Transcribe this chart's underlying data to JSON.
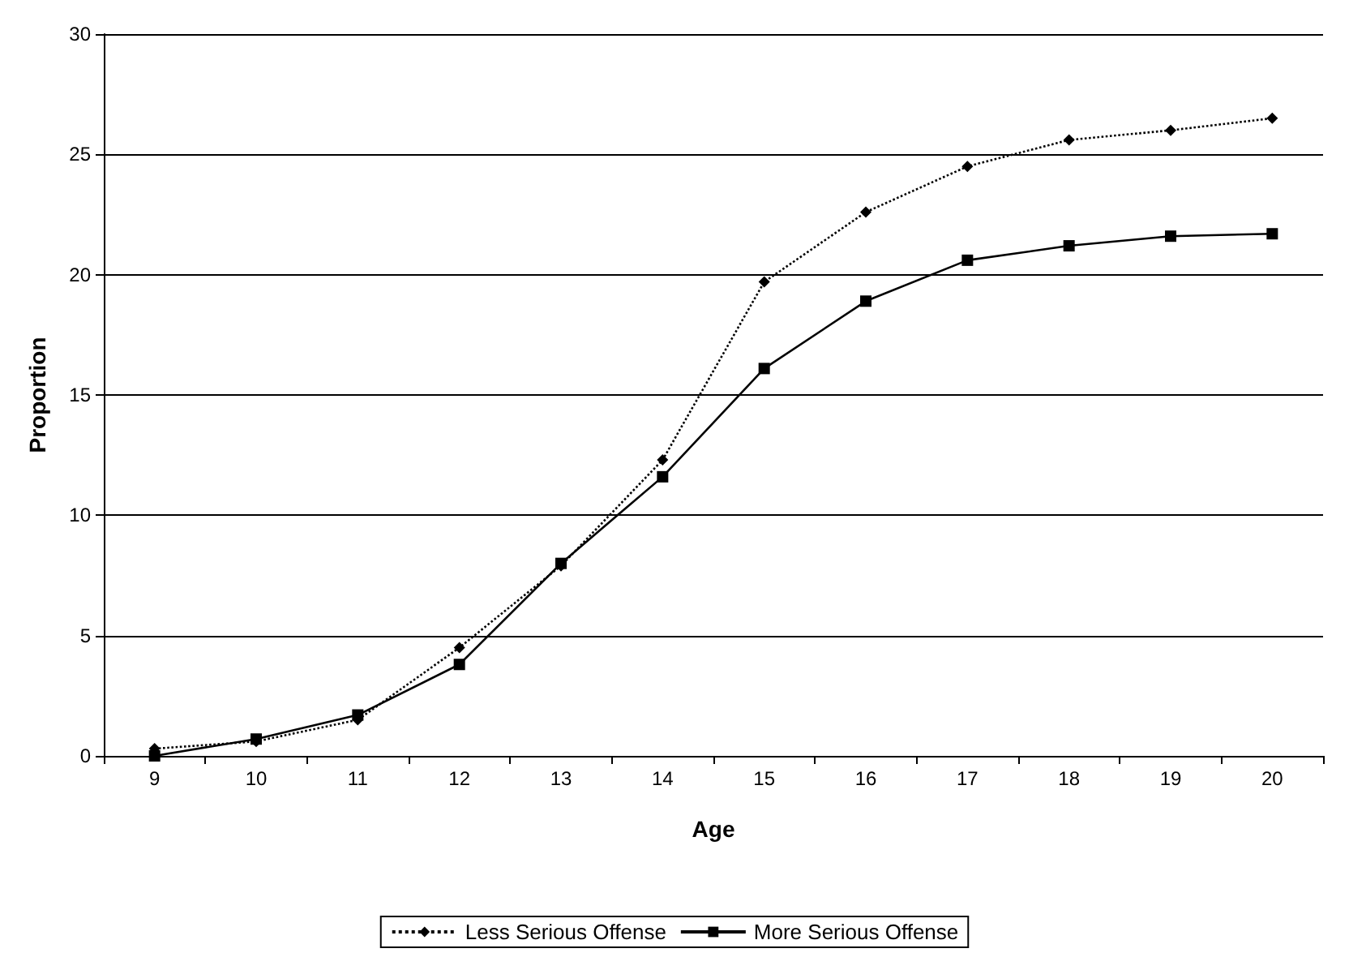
{
  "chart_data": {
    "type": "line",
    "xlabel": "Age",
    "ylabel": "Proportion",
    "categories": [
      "9",
      "10",
      "11",
      "12",
      "13",
      "14",
      "15",
      "16",
      "17",
      "18",
      "19",
      "20"
    ],
    "series": [
      {
        "name": "Less Serious Offense",
        "color": "#000000",
        "marker": "diamond",
        "line_style": "dotted",
        "values": [
          0.3,
          0.6,
          1.5,
          4.5,
          7.9,
          12.3,
          19.7,
          22.6,
          24.5,
          25.6,
          26.0,
          26.5
        ]
      },
      {
        "name": "More Serious Offense",
        "color": "#000000",
        "marker": "square",
        "line_style": "solid",
        "values": [
          0.0,
          0.7,
          1.7,
          3.8,
          8.0,
          11.6,
          16.1,
          18.9,
          20.6,
          21.2,
          21.6,
          21.7
        ]
      }
    ],
    "ylim": [
      0,
      30
    ],
    "yticks": [
      0,
      5,
      10,
      15,
      20,
      25,
      30
    ],
    "grid": "y",
    "legend": "bottom"
  }
}
